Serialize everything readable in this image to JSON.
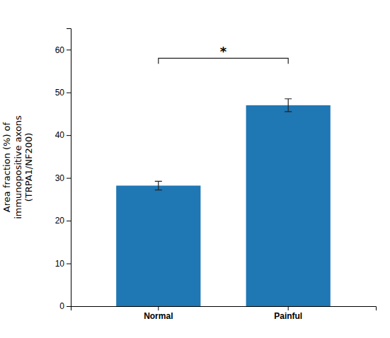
{
  "chart_data": {
    "type": "bar",
    "categories": [
      "Normal",
      "Painful"
    ],
    "values": [
      28.2,
      47.0
    ],
    "errors": [
      1.0,
      1.5
    ],
    "y_label": "Area fraction (%) of\nimmunopositive axons\n(TRPA1/NF200)",
    "ylim": [
      0,
      65
    ],
    "yticks": [
      0,
      10,
      20,
      30,
      40,
      50,
      60
    ],
    "annotations": [
      {
        "text": "*",
        "between": [
          "Normal",
          "Painful"
        ],
        "y": 58.0
      }
    ]
  }
}
